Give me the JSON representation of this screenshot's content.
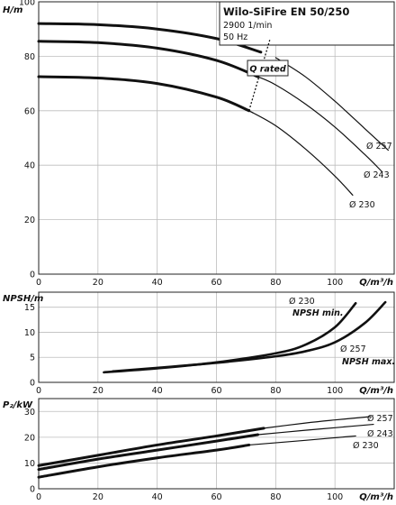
{
  "chart_data": [
    {
      "type": "line",
      "id": "head",
      "title": "Wilo-SiFire EN 50/250",
      "subtitle_lines": [
        "2900 1/min",
        "50 Hz"
      ],
      "ylabel": "H/m",
      "xlabel": "Q/m³/h",
      "xlim": [
        0,
        120
      ],
      "ylim": [
        0,
        100
      ],
      "xticks": [
        0,
        20,
        40,
        60,
        80,
        100
      ],
      "yticks": [
        0,
        20,
        40,
        60,
        80,
        100
      ],
      "grid": true,
      "series": [
        {
          "name": "Ø 257",
          "x": [
            0,
            20,
            40,
            60,
            75,
            80,
            90,
            100,
            110,
            118
          ],
          "y": [
            92,
            91.6,
            90,
            86.5,
            81.5,
            79.5,
            72.5,
            63.5,
            53.5,
            45.5
          ],
          "thick_until": 76
        },
        {
          "name": "Ø 243",
          "x": [
            0,
            20,
            40,
            60,
            74,
            80,
            90,
            100,
            110,
            116
          ],
          "y": [
            85.5,
            85,
            83,
            78.5,
            72.5,
            69.5,
            62.5,
            54,
            44,
            37.5
          ],
          "thick_until": 74
        },
        {
          "name": "Ø 230",
          "x": [
            0,
            20,
            40,
            60,
            71,
            80,
            90,
            100,
            106
          ],
          "y": [
            72.5,
            72,
            70,
            65,
            60,
            54.5,
            46,
            36,
            29
          ],
          "thick_until": 71
        }
      ],
      "annotations": [
        {
          "text": "Q rated",
          "boxed": true
        },
        {
          "text": "Ø 257"
        },
        {
          "text": "Ø 243"
        },
        {
          "text": "Ø 230"
        }
      ],
      "rated_line": {
        "x": [
          71,
          78
        ],
        "y": [
          60,
          86
        ]
      }
    },
    {
      "type": "line",
      "id": "npsh",
      "ylabel": "NPSH/m",
      "xlabel": "Q/m³/h",
      "xlim": [
        0,
        120
      ],
      "ylim": [
        0,
        18
      ],
      "xticks": [
        0,
        20,
        40,
        60,
        80,
        100
      ],
      "yticks": [
        0,
        5,
        10,
        15
      ],
      "grid": true,
      "series": [
        {
          "name": "NPSH min. (Ø 230)",
          "x": [
            22,
            40,
            60,
            80,
            90,
            100,
            107
          ],
          "y": [
            2,
            2.8,
            4,
            5.8,
            7.5,
            11,
            15.8
          ]
        },
        {
          "name": "NPSH max. (Ø 257)",
          "x": [
            25,
            40,
            60,
            80,
            90,
            100,
            110,
            117
          ],
          "y": [
            2.2,
            2.9,
            3.9,
            5.2,
            6.2,
            8,
            11.8,
            16
          ]
        }
      ],
      "annotations": [
        {
          "text": "Ø 230"
        },
        {
          "text": "NPSH min."
        },
        {
          "text": "Ø 257"
        },
        {
          "text": "NPSH max."
        }
      ]
    },
    {
      "type": "line",
      "id": "power",
      "ylabel": "P₂/kW",
      "xlabel": "Q/m³/h",
      "xlim": [
        0,
        120
      ],
      "ylim": [
        0,
        35
      ],
      "xticks": [
        0,
        20,
        40,
        60,
        80,
        100
      ],
      "yticks": [
        0,
        10,
        20,
        30
      ],
      "grid": true,
      "series": [
        {
          "name": "Ø 257",
          "x": [
            0,
            20,
            40,
            60,
            76,
            90,
            100,
            112
          ],
          "y": [
            9,
            13,
            17,
            20.5,
            23.5,
            25.5,
            26.7,
            28
          ],
          "thick_until": 76
        },
        {
          "name": "Ø 243",
          "x": [
            0,
            20,
            40,
            60,
            74,
            90,
            100,
            113
          ],
          "y": [
            7.5,
            11.5,
            15,
            18.5,
            21,
            22.7,
            23.7,
            25
          ],
          "thick_until": 74
        },
        {
          "name": "Ø 230",
          "x": [
            0,
            20,
            40,
            60,
            71,
            90,
            100,
            107
          ],
          "y": [
            4.5,
            8.5,
            12,
            15,
            17,
            18.8,
            19.8,
            20.5
          ],
          "thick_until": 71
        }
      ],
      "annotations": [
        {
          "text": "Ø 257"
        },
        {
          "text": "Ø 243"
        },
        {
          "text": "Ø 230"
        }
      ]
    }
  ]
}
